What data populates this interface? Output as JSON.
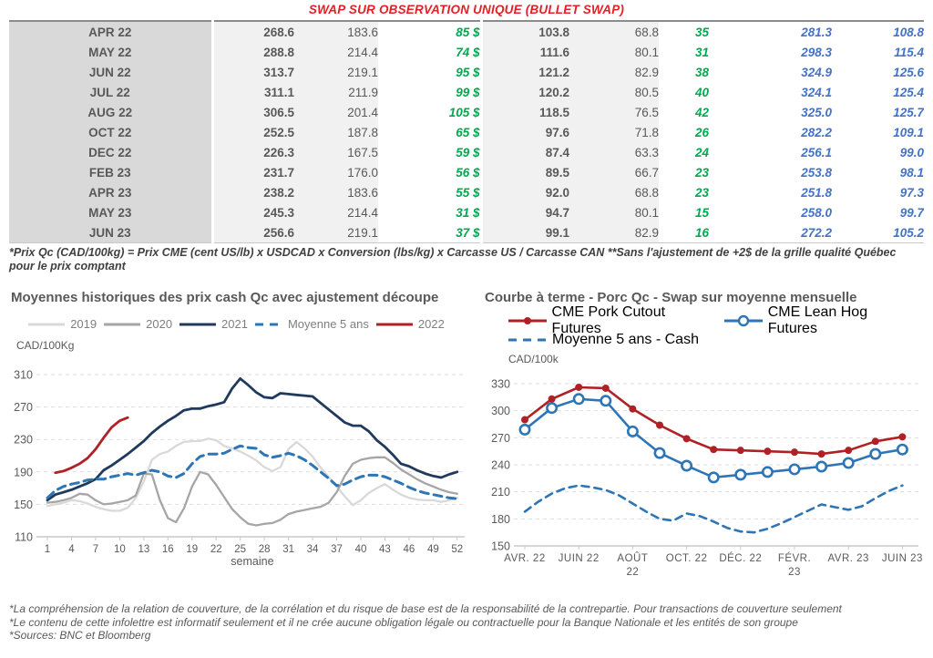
{
  "title": "SWAP SUR OBSERVATION UNIQUE (BULLET SWAP)",
  "colors": {
    "title_red": "#e61e25",
    "table_green": "#00a84f",
    "table_blue": "#4472c4",
    "series_2019": "#d9d9d9",
    "series_2020": "#a6a6a6",
    "series_2021": "#1f3a5c",
    "series_2022": "#b02125",
    "series_moy5": "#2e75b6"
  },
  "table": {
    "rows": [
      {
        "month": "APR 22",
        "qc": "268.6",
        "qc_avg": "183.6",
        "diff_cad": "85 $",
        "cme": "103.8",
        "cme_avg": "68.8",
        "diff_pct": "35",
        "fwd_qc": "281.3",
        "fwd_cme": "108.8"
      },
      {
        "month": "MAY 22",
        "qc": "288.8",
        "qc_avg": "214.4",
        "diff_cad": "74 $",
        "cme": "111.6",
        "cme_avg": "80.1",
        "diff_pct": "31",
        "fwd_qc": "298.3",
        "fwd_cme": "115.4"
      },
      {
        "month": "JUN 22",
        "qc": "313.7",
        "qc_avg": "219.1",
        "diff_cad": "95 $",
        "cme": "121.2",
        "cme_avg": "82.9",
        "diff_pct": "38",
        "fwd_qc": "324.9",
        "fwd_cme": "125.6"
      },
      {
        "month": "JUL 22",
        "qc": "311.1",
        "qc_avg": "211.9",
        "diff_cad": "99 $",
        "cme": "120.2",
        "cme_avg": "80.5",
        "diff_pct": "40",
        "fwd_qc": "324.1",
        "fwd_cme": "125.4"
      },
      {
        "month": "AUG 22",
        "qc": "306.5",
        "qc_avg": "201.4",
        "diff_cad": "105 $",
        "cme": "118.5",
        "cme_avg": "76.5",
        "diff_pct": "42",
        "fwd_qc": "325.0",
        "fwd_cme": "125.7"
      },
      {
        "month": "OCT 22",
        "qc": "252.5",
        "qc_avg": "187.8",
        "diff_cad": "65 $",
        "cme": "97.6",
        "cme_avg": "71.8",
        "diff_pct": "26",
        "fwd_qc": "282.2",
        "fwd_cme": "109.1"
      },
      {
        "month": "DEC 22",
        "qc": "226.3",
        "qc_avg": "167.5",
        "diff_cad": "59 $",
        "cme": "87.4",
        "cme_avg": "63.3",
        "diff_pct": "24",
        "fwd_qc": "256.1",
        "fwd_cme": "99.0"
      },
      {
        "month": "FEB 23",
        "qc": "231.7",
        "qc_avg": "176.0",
        "diff_cad": "56 $",
        "cme": "89.5",
        "cme_avg": "66.7",
        "diff_pct": "23",
        "fwd_qc": "253.8",
        "fwd_cme": "98.1"
      },
      {
        "month": "APR 23",
        "qc": "238.2",
        "qc_avg": "183.6",
        "diff_cad": "55 $",
        "cme": "92.0",
        "cme_avg": "68.8",
        "diff_pct": "23",
        "fwd_qc": "251.8",
        "fwd_cme": "97.3"
      },
      {
        "month": "MAY 23",
        "qc": "245.3",
        "qc_avg": "214.4",
        "diff_cad": "31 $",
        "cme": "94.7",
        "cme_avg": "80.1",
        "diff_pct": "15",
        "fwd_qc": "258.0",
        "fwd_cme": "99.7"
      },
      {
        "month": "JUN 23",
        "qc": "256.6",
        "qc_avg": "219.1",
        "diff_cad": "37 $",
        "cme": "99.1",
        "cme_avg": "82.9",
        "diff_pct": "16",
        "fwd_qc": "272.2",
        "fwd_cme": "105.2"
      }
    ]
  },
  "table_footnote": "*Prix Qc (CAD/100kg) = Prix CME (cent US/lb) x USDCAD x Conversion (lbs/kg) x Carcasse US / Carcasse CAN **Sans l'ajustement de +2$ de la grille qualité Québec pour le prix comptant",
  "charts": {
    "left": {
      "title": "Moyennes historiques des prix cash Qc avec ajustement découpe",
      "unit": "CAD/100Kg",
      "xlabel": "semaine"
    },
    "right": {
      "title": "Courbe à terme - Porc Qc - Swap sur moyenne mensuelle",
      "unit": "CAD/100k"
    }
  },
  "chart_data": [
    {
      "type": "line",
      "title": "Moyennes historiques des prix cash Qc avec ajustement découpe",
      "xlabel": "semaine",
      "ylabel": "CAD/100Kg",
      "ylim": [
        110,
        310
      ],
      "ytick_step": 40,
      "xlim": [
        1,
        52
      ],
      "xtick_step": 3,
      "grid": "dashed-horizontal",
      "legend_position": "top-center",
      "series": [
        {
          "name": "2019",
          "color": "#d9d9d9",
          "style": "solid",
          "x_start": 1,
          "values": [
            148,
            150,
            152,
            155,
            154,
            151,
            147,
            144,
            142,
            142,
            146,
            158,
            178,
            205,
            212,
            215,
            222,
            227,
            228,
            228,
            231,
            229,
            222,
            219,
            215,
            210,
            204,
            196,
            191,
            196,
            218,
            227,
            219,
            209,
            195,
            184,
            172,
            160,
            149,
            155,
            164,
            170,
            175,
            168,
            162,
            158,
            156,
            155,
            155,
            153,
            155,
            158
          ]
        },
        {
          "name": "2020",
          "color": "#a6a6a6",
          "style": "solid",
          "x_start": 1,
          "values": [
            152,
            153,
            155,
            158,
            163,
            162,
            155,
            150,
            151,
            153,
            155,
            161,
            188,
            187,
            155,
            133,
            128,
            145,
            172,
            190,
            187,
            174,
            159,
            144,
            134,
            126,
            124,
            126,
            127,
            131,
            138,
            141,
            143,
            145,
            147,
            152,
            165,
            185,
            200,
            205,
            207,
            208,
            208,
            201,
            193,
            187,
            181,
            176,
            172,
            168,
            165,
            163
          ]
        },
        {
          "name": "2021",
          "color": "#1f3a5c",
          "style": "solid",
          "x_start": 1,
          "values": [
            155,
            162,
            165,
            168,
            172,
            176,
            181,
            192,
            198,
            205,
            212,
            220,
            228,
            238,
            246,
            253,
            259,
            266,
            268,
            268,
            271,
            273,
            276,
            293,
            305,
            297,
            288,
            282,
            281,
            287,
            286,
            285,
            284,
            283,
            275,
            267,
            259,
            251,
            247,
            247,
            240,
            229,
            221,
            211,
            200,
            197,
            192,
            188,
            185,
            183,
            187,
            190
          ]
        },
        {
          "name": "Moyenne 5 ans",
          "color": "#2e75b6",
          "style": "dashed",
          "x_start": 1,
          "values": [
            158,
            167,
            172,
            175,
            177,
            180,
            181,
            181,
            184,
            186,
            188,
            186,
            189,
            192,
            190,
            185,
            183,
            188,
            200,
            209,
            212,
            212,
            213,
            218,
            222,
            220,
            219,
            211,
            208,
            210,
            213,
            210,
            205,
            198,
            190,
            182,
            173,
            175,
            180,
            184,
            186,
            186,
            184,
            180,
            176,
            171,
            167,
            164,
            162,
            160,
            158,
            157
          ]
        },
        {
          "name": "2022",
          "color": "#b02125",
          "style": "solid",
          "x_start": 2,
          "values": [
            189,
            191,
            195,
            200,
            207,
            218,
            232,
            245,
            253,
            257
          ]
        }
      ]
    },
    {
      "type": "line",
      "title": "Courbe à terme - Porc Qc - Swap sur moyenne mensuelle",
      "ylabel": "CAD/100k",
      "ylim": [
        150,
        330
      ],
      "ytick_step": 30,
      "grid": "dashed-horizontal",
      "legend_position": "top-left",
      "x_tick_labels": [
        [
          "AVR. 22"
        ],
        [
          "JUIN 22"
        ],
        [
          "AOÛT",
          "22"
        ],
        [
          "OCT. 22"
        ],
        [
          "DÉC. 22"
        ],
        [
          "FÉVR.",
          "23"
        ],
        [
          "AVR. 23"
        ],
        [
          "JUIN 23"
        ]
      ],
      "x_tick_indices": [
        0,
        2,
        4,
        6,
        8,
        10,
        12,
        14
      ],
      "series": [
        {
          "name": "Moyenne 5 ans - Cash",
          "color": "#2e75b6",
          "style": "dashed",
          "marker": "none",
          "x": [
            0,
            0.5,
            1,
            1.5,
            2,
            2.5,
            3,
            3.5,
            4,
            4.5,
            5,
            5.5,
            6,
            6.5,
            7,
            7.5,
            8,
            8.5,
            9,
            9.5,
            10,
            10.5,
            11,
            11.5,
            12,
            12.5,
            13,
            13.5,
            14
          ],
          "values": [
            188,
            199,
            208,
            214,
            217,
            215,
            212,
            206,
            197,
            188,
            180,
            178,
            186,
            183,
            177,
            170,
            166,
            165,
            169,
            175,
            182,
            189,
            196,
            193,
            190,
            194,
            203,
            211,
            217
          ]
        },
        {
          "name": "CME Pork Cutout Futures",
          "color": "#b02125",
          "style": "solid",
          "marker": "filled-circle",
          "x": [
            0,
            1,
            2,
            3,
            4,
            5,
            6,
            7,
            8,
            9,
            10,
            11,
            12,
            13,
            14
          ],
          "values": [
            290,
            313,
            326,
            325,
            302,
            284,
            269,
            257,
            256,
            255,
            254,
            252,
            256,
            266,
            271
          ]
        },
        {
          "name": "CME Lean Hog Futures",
          "color": "#2e75b6",
          "style": "solid",
          "marker": "open-circle",
          "x": [
            0,
            1,
            2,
            3,
            4,
            5,
            6,
            7,
            8,
            9,
            10,
            11,
            12,
            13,
            14
          ],
          "values": [
            279,
            303,
            313,
            311,
            277,
            253,
            239,
            226,
            229,
            232,
            235,
            238,
            242,
            252,
            257
          ]
        }
      ]
    }
  ],
  "footnotes": [
    "*La compréhension de la relation de couverture, de la corrélation et du risque de base est de la responsabilité de la contrepartie. Pour transactions de couverture seulement",
    "*Le contenu de cette infolettre est informatif seulement et il ne crée aucune obligation légale ou contractuelle pour la Banque Nationale et les entités de son groupe",
    "*Sources: BNC et Bloomberg"
  ]
}
